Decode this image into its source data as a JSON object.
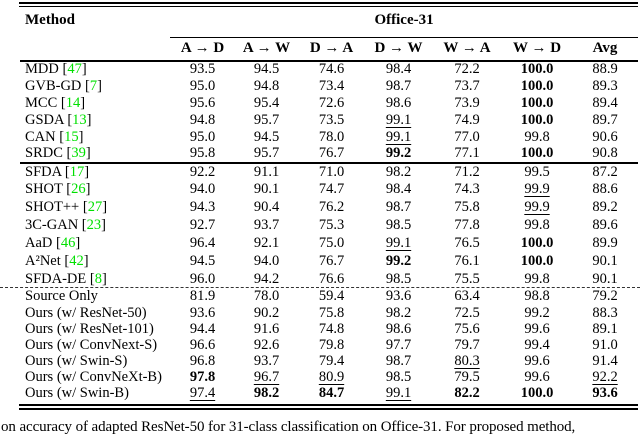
{
  "header": {
    "method": "Method",
    "group": "Office-31",
    "columns": [
      "A → D",
      "A → W",
      "D → A",
      "D → W",
      "W → A",
      "W → D",
      "Avg"
    ]
  },
  "groups": [
    {
      "rows": [
        {
          "method": "MDD",
          "cite": "47",
          "values": [
            "93.5",
            "94.5",
            "74.6",
            "98.4",
            "72.2",
            "100.0",
            "88.9"
          ],
          "bold": [
            5
          ],
          "underline": []
        },
        {
          "method": "GVB-GD",
          "cite": "7",
          "values": [
            "95.0",
            "94.8",
            "73.4",
            "98.7",
            "73.7",
            "100.0",
            "89.3"
          ],
          "bold": [
            5
          ],
          "underline": []
        },
        {
          "method": "MCC",
          "cite": "14",
          "values": [
            "95.6",
            "95.4",
            "72.6",
            "98.6",
            "73.9",
            "100.0",
            "89.4"
          ],
          "bold": [
            5
          ],
          "underline": []
        },
        {
          "method": "GSDA",
          "cite": "13",
          "values": [
            "94.8",
            "95.7",
            "73.5",
            "99.1",
            "74.9",
            "100.0",
            "89.7"
          ],
          "bold": [
            5
          ],
          "underline": [
            3
          ]
        },
        {
          "method": "CAN",
          "cite": "15",
          "values": [
            "95.0",
            "94.5",
            "78.0",
            "99.1",
            "77.0",
            "99.8",
            "90.6"
          ],
          "bold": [],
          "underline": [
            3
          ]
        },
        {
          "method": "SRDC",
          "cite": "39",
          "values": [
            "95.8",
            "95.7",
            "76.7",
            "99.2",
            "77.1",
            "100.0",
            "90.8"
          ],
          "bold": [
            3,
            5
          ],
          "underline": []
        }
      ]
    },
    {
      "rows": [
        {
          "method": "SFDA",
          "cite": "17",
          "values": [
            "92.2",
            "91.1",
            "71.0",
            "98.2",
            "71.2",
            "99.5",
            "87.2"
          ],
          "bold": [],
          "underline": []
        },
        {
          "method": "SHOT",
          "cite": "26",
          "values": [
            "94.0",
            "90.1",
            "74.7",
            "98.4",
            "74.3",
            "99.9",
            "88.6"
          ],
          "bold": [],
          "underline": [
            5
          ]
        },
        {
          "method": "SHOT++",
          "cite": "27",
          "values": [
            "94.3",
            "90.4",
            "76.2",
            "98.7",
            "75.8",
            "99.9",
            "89.2"
          ],
          "bold": [],
          "underline": [
            5
          ]
        },
        {
          "method": "3C-GAN",
          "cite": "23",
          "values": [
            "92.7",
            "93.7",
            "75.3",
            "98.5",
            "77.8",
            "99.8",
            "89.6"
          ],
          "bold": [],
          "underline": []
        },
        {
          "method": "AaD",
          "cite": "46",
          "values": [
            "96.4",
            "92.1",
            "75.0",
            "99.1",
            "76.5",
            "100.0",
            "89.9"
          ],
          "bold": [
            5
          ],
          "underline": [
            3
          ]
        },
        {
          "method": "A²Net",
          "cite": "42",
          "values": [
            "94.5",
            "94.0",
            "76.7",
            "99.2",
            "76.1",
            "100.0",
            "90.1"
          ],
          "bold": [
            3,
            5
          ],
          "underline": []
        },
        {
          "method": "SFDA-DE",
          "cite": "8",
          "values": [
            "96.0",
            "94.2",
            "76.6",
            "98.5",
            "75.5",
            "99.8",
            "90.1"
          ],
          "bold": [],
          "underline": []
        }
      ]
    },
    {
      "rows": [
        {
          "method": "Source Only",
          "cite": null,
          "values": [
            "81.9",
            "78.0",
            "59.4",
            "93.6",
            "63.4",
            "98.8",
            "79.2"
          ],
          "bold": [],
          "underline": []
        },
        {
          "method": "Ours (w/ ResNet-50)",
          "cite": null,
          "values": [
            "93.6",
            "90.2",
            "75.8",
            "98.2",
            "72.5",
            "99.2",
            "88.3"
          ],
          "bold": [],
          "underline": []
        },
        {
          "method": "Ours (w/ ResNet-101)",
          "cite": null,
          "values": [
            "94.4",
            "91.6",
            "74.8",
            "98.6",
            "75.6",
            "99.6",
            "89.1"
          ],
          "bold": [],
          "underline": []
        },
        {
          "method": "Ours (w/ ConvNext-S)",
          "cite": null,
          "values": [
            "96.6",
            "92.6",
            "79.8",
            "97.7",
            "79.7",
            "99.4",
            "91.0"
          ],
          "bold": [],
          "underline": []
        },
        {
          "method": "Ours (w/ Swin-S)",
          "cite": null,
          "values": [
            "96.8",
            "93.7",
            "79.4",
            "98.7",
            "80.3",
            "99.6",
            "91.4"
          ],
          "bold": [],
          "underline": [
            4
          ]
        },
        {
          "method": "Ours (w/ ConvNeXt-B)",
          "cite": null,
          "values": [
            "97.8",
            "96.7",
            "80.9",
            "98.5",
            "79.5",
            "99.6",
            "92.2"
          ],
          "bold": [
            0
          ],
          "underline": [
            1,
            2,
            6
          ]
        },
        {
          "method": "Ours (w/ Swin-B)",
          "cite": null,
          "values": [
            "97.4",
            "98.2",
            "84.7",
            "99.1",
            "82.2",
            "100.0",
            "93.6"
          ],
          "bold": [
            1,
            2,
            4,
            5,
            6
          ],
          "underline": [
            0,
            3
          ]
        }
      ]
    }
  ],
  "caption": "on accuracy of adapted ResNet-50 for 31-class classification on Office-31. For proposed method,",
  "colors": {
    "citation": "#00e000"
  }
}
